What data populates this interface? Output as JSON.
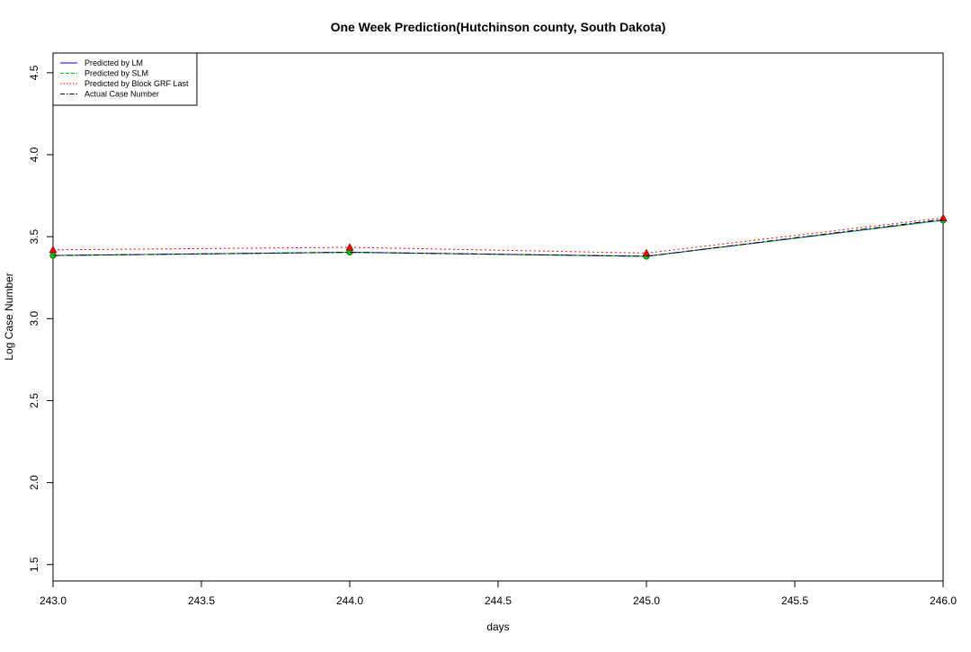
{
  "chart_data": {
    "type": "line",
    "title": "One Week Prediction(Hutchinson county, South Dakota)",
    "xlabel": "days",
    "ylabel": "Log Case Number",
    "xlim": [
      243.0,
      246.0
    ],
    "ylim": [
      1.4,
      4.62
    ],
    "x_ticks": [
      "243.0",
      "243.5",
      "244.0",
      "244.5",
      "245.0",
      "245.5",
      "246.0"
    ],
    "y_ticks": [
      "1.5",
      "2.0",
      "2.5",
      "3.0",
      "3.5",
      "4.0",
      "4.5"
    ],
    "x_tick_values": [
      243.0,
      243.5,
      244.0,
      244.5,
      245.0,
      245.5,
      246.0
    ],
    "y_tick_values": [
      1.5,
      2.0,
      2.5,
      3.0,
      3.5,
      4.0,
      4.5
    ],
    "grid": false,
    "legend_position": "top-left",
    "x": [
      243,
      244,
      245,
      246
    ],
    "series": [
      {
        "name": "Predicted by LM",
        "values": [
          3.385,
          3.405,
          3.38,
          3.6
        ],
        "color": "#0000ff",
        "dash": "solid",
        "marker": "none"
      },
      {
        "name": "Predicted by SLM",
        "values": [
          3.385,
          3.405,
          3.38,
          3.6
        ],
        "color": "#00cc00",
        "dash": "dashed",
        "marker": "circle"
      },
      {
        "name": "Predicted by Block GRF Last",
        "values": [
          3.42,
          3.435,
          3.4,
          3.615
        ],
        "color": "#ff0000",
        "dash": "dotted",
        "marker": "triangle"
      },
      {
        "name": "Actual Case Number",
        "values": [
          3.385,
          3.405,
          3.38,
          3.605
        ],
        "color": "#000000",
        "dash": "dotdash",
        "marker": "none"
      }
    ]
  }
}
